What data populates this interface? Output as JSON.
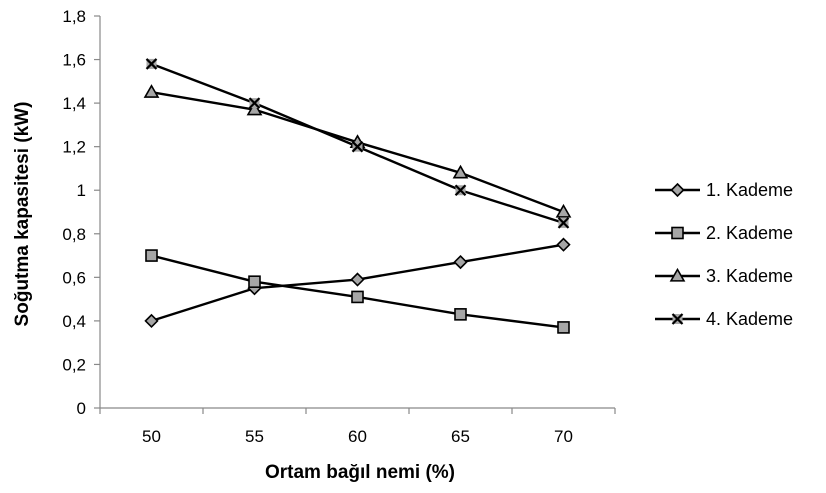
{
  "chart_data": {
    "type": "line",
    "x": [
      50,
      55,
      60,
      65,
      70
    ],
    "x_tick_labels": [
      "50",
      "55",
      "60",
      "65",
      "70"
    ],
    "xlabel": "Ortam bağıl nemi (%)",
    "ylabel": "Soğutma kapasitesi (kW)",
    "ylim": [
      0,
      1.8
    ],
    "y_ticks": [
      0,
      0.2,
      0.4,
      0.6,
      0.8,
      1,
      1.2,
      1.4,
      1.6,
      1.8
    ],
    "y_tick_labels": [
      "0",
      "0,2",
      "0,4",
      "0,6",
      "0,8",
      "1",
      "1,2",
      "1,4",
      "1,6",
      "1,8"
    ],
    "grid": false,
    "legend_position": "right",
    "series": [
      {
        "name": "1. Kademe",
        "marker": "diamond",
        "values": [
          0.4,
          0.55,
          0.59,
          0.67,
          0.75
        ]
      },
      {
        "name": "2. Kademe",
        "marker": "square",
        "values": [
          0.7,
          0.58,
          0.51,
          0.43,
          0.37
        ]
      },
      {
        "name": "3. Kademe",
        "marker": "triangle",
        "values": [
          1.45,
          1.37,
          1.22,
          1.08,
          0.9
        ]
      },
      {
        "name": "4. Kademe",
        "marker": "x-square",
        "values": [
          1.58,
          1.4,
          1.2,
          1.0,
          0.85
        ]
      }
    ],
    "colors": {
      "line": "#000000",
      "marker_fill": "#a6a6a6",
      "axis": "#898989"
    }
  }
}
